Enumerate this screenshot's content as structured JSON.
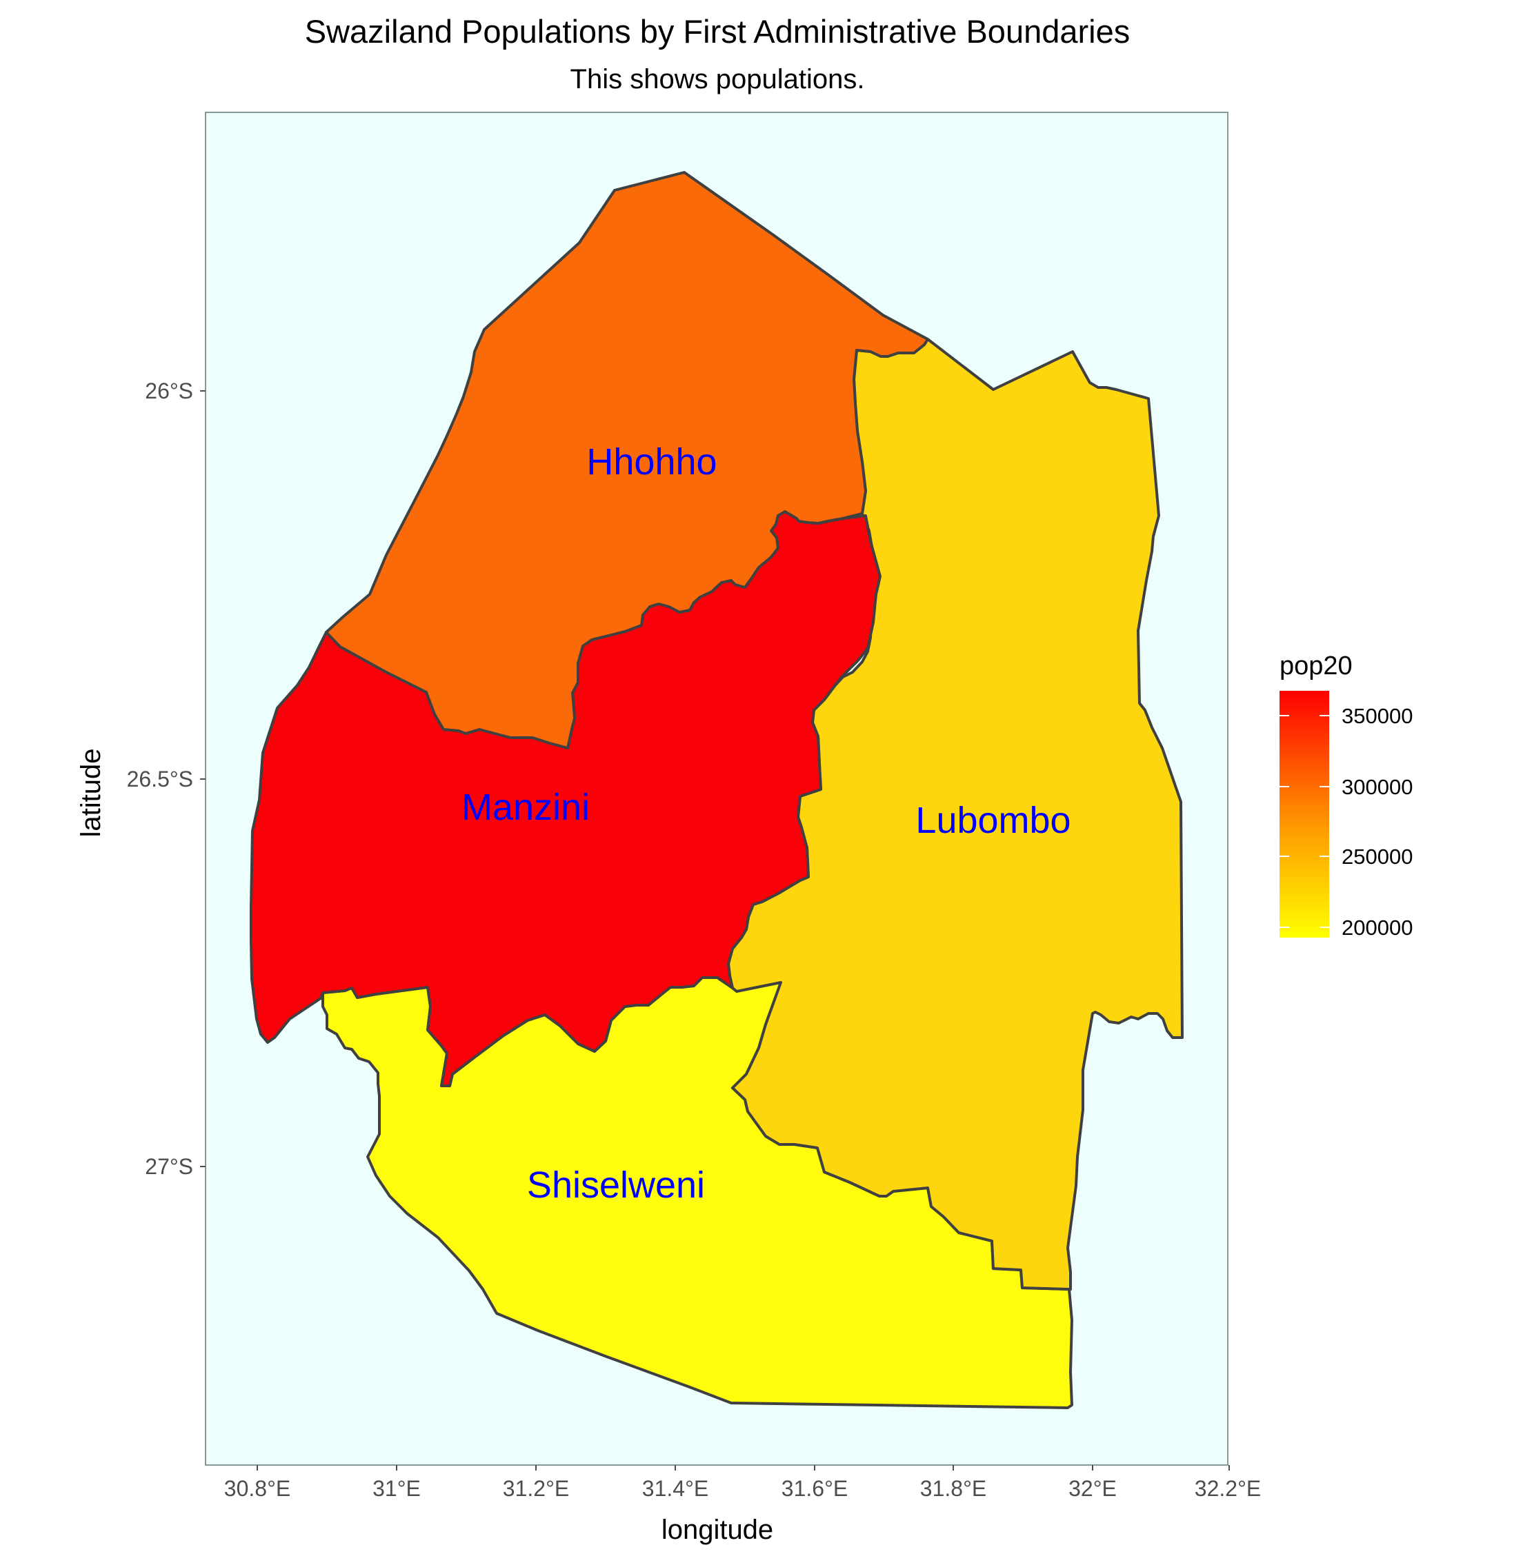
{
  "title": "Swaziland Populations by First Administrative Boundaries",
  "subtitle": "This shows populations.",
  "axes": {
    "x_title": "longitude",
    "y_title": "latitude",
    "x_ticks": [
      "30.8°E",
      "31°E",
      "31.2°E",
      "31.4°E",
      "31.6°E",
      "31.8°E",
      "32°E",
      "32.2°E"
    ],
    "y_ticks": [
      "26°S",
      "26.5°S",
      "27°S"
    ]
  },
  "legend": {
    "title": "pop20",
    "ticks": [
      "350000",
      "300000",
      "250000",
      "200000"
    ],
    "colors": {
      "low": "#ffff00",
      "mid": "#ff9900",
      "high": "#ff0000"
    }
  },
  "panel_background": "#ecfffd",
  "regions": [
    {
      "name": "Hhohho",
      "label": "Hhohho",
      "fill": "#fb6a08"
    },
    {
      "name": "Manzini",
      "label": "Manzini",
      "fill": "#fa0008"
    },
    {
      "name": "Lubombo",
      "label": "Lubombo",
      "fill": "#fed60d"
    },
    {
      "name": "Shiselweni",
      "label": "Shiselweni",
      "fill": "#fffd0b"
    }
  ]
}
